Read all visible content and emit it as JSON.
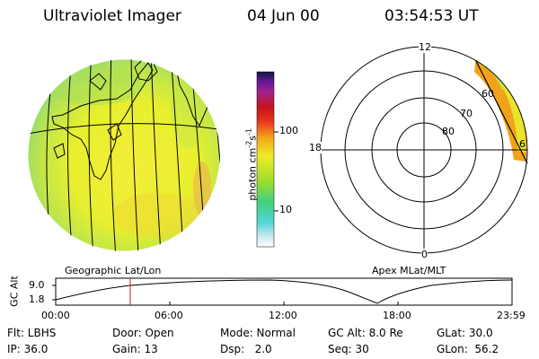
{
  "header": {
    "instrument": "Ultraviolet Imager",
    "date": "04 Jun 00",
    "time": "03:54:53 UT"
  },
  "colorbar": {
    "unit_label": "photon cm",
    "unit_exp1": "-2",
    "unit_mid": "s",
    "unit_exp2": "-1",
    "ticks": [
      "100",
      "10"
    ]
  },
  "polar_plot": {
    "mlt_labels": [
      "12",
      "18",
      "0",
      "6"
    ],
    "lat_labels": [
      "60",
      "70",
      "80"
    ]
  },
  "map_labels": {
    "left": "Geographic Lat/Lon",
    "right": "Apex MLat/MLT"
  },
  "altitude_plot": {
    "ylabel": "GC Alt",
    "yticks": [
      "9.0",
      "1.8"
    ],
    "xticks": [
      "00:00",
      "06:00",
      "12:00",
      "18:00",
      "23:59"
    ]
  },
  "info": {
    "row1": {
      "flt": "Flt: LBHS",
      "door": "Door: Open",
      "mode": "Mode: Normal",
      "gcalt": "GC Alt: 8.0 Re",
      "glat": "GLat: 30.0"
    },
    "row2": {
      "ip": "IP: 36.0",
      "gain": "Gain: 13",
      "dsp": "Dsp:   2.0",
      "seq": "Seq: 30",
      "glon": "GLon:  56.2"
    }
  },
  "colors": {
    "earth_main": "#e9ef2c",
    "earth_edge": "#9fe06a",
    "aurora": "#f2a21a",
    "time_marker": "#d21c1c"
  }
}
